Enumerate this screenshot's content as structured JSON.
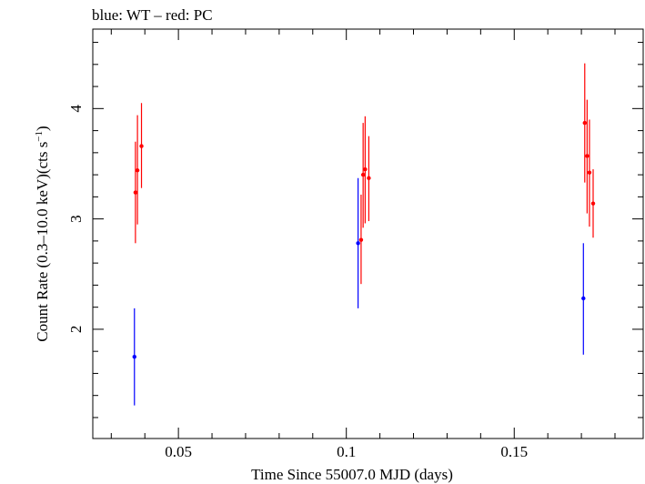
{
  "header": {
    "title": "blue: WT – red: PC"
  },
  "chart_data": {
    "type": "scatter",
    "title": "blue: WT – red: PC",
    "xlabel": "Time Since 55007.0 MJD (days)",
    "ylabel": "Count Rate (0.3–10.0 keV)(cts s",
    "ylabel_sup": "−1",
    "ylabel_close": ")",
    "xlim": [
      0.0245,
      0.1884
    ],
    "ylim": [
      1.01,
      4.72
    ],
    "xticks": [
      0.05,
      0.1,
      0.15
    ],
    "xtick_labels": [
      "0.05",
      "0.1",
      "0.15"
    ],
    "yticks": [
      2,
      3,
      4
    ],
    "ytick_labels": [
      "2",
      "3",
      "4"
    ],
    "series": [
      {
        "name": "WT",
        "color": "#0000ff",
        "points": [
          {
            "x": 0.0369,
            "y": 1.75,
            "ylow": 1.31,
            "yhigh": 2.19
          },
          {
            "x": 0.1035,
            "y": 2.78,
            "ylow": 2.19,
            "yhigh": 3.37
          },
          {
            "x": 0.1706,
            "y": 2.28,
            "ylow": 1.77,
            "yhigh": 2.78
          }
        ]
      },
      {
        "name": "PC",
        "color": "#ff0000",
        "points": [
          {
            "x": 0.0372,
            "y": 3.24,
            "ylow": 2.78,
            "yhigh": 3.7
          },
          {
            "x": 0.0378,
            "y": 3.44,
            "ylow": 2.95,
            "yhigh": 3.94
          },
          {
            "x": 0.039,
            "y": 3.66,
            "ylow": 3.28,
            "yhigh": 4.05
          },
          {
            "x": 0.1044,
            "y": 2.81,
            "ylow": 2.41,
            "yhigh": 3.22
          },
          {
            "x": 0.105,
            "y": 3.4,
            "ylow": 2.92,
            "yhigh": 3.87
          },
          {
            "x": 0.1056,
            "y": 3.45,
            "ylow": 2.96,
            "yhigh": 3.93
          },
          {
            "x": 0.1067,
            "y": 3.37,
            "ylow": 2.98,
            "yhigh": 3.75
          },
          {
            "x": 0.171,
            "y": 3.87,
            "ylow": 3.33,
            "yhigh": 4.41
          },
          {
            "x": 0.1717,
            "y": 3.57,
            "ylow": 3.05,
            "yhigh": 4.08
          },
          {
            "x": 0.1724,
            "y": 3.42,
            "ylow": 2.93,
            "yhigh": 3.9
          },
          {
            "x": 0.1735,
            "y": 3.14,
            "ylow": 2.83,
            "yhigh": 3.45
          }
        ]
      }
    ]
  }
}
